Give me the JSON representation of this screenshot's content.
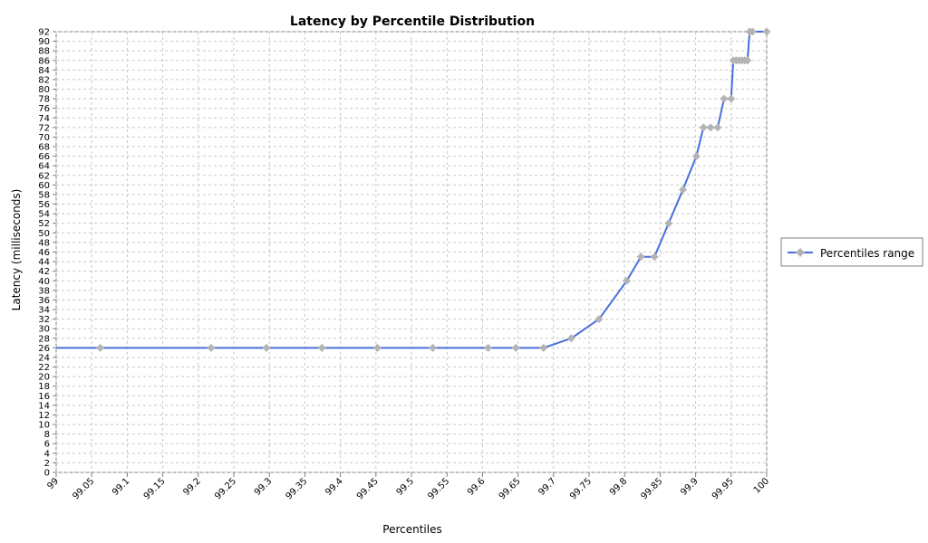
{
  "chart_data": {
    "type": "line",
    "title": "Latency by Percentile Distribution",
    "xlabel": "Percentiles",
    "ylabel": "Latency (milliseconds)",
    "xlim": [
      99,
      100
    ],
    "ylim": [
      0,
      92
    ],
    "x_ticks": [
      "99",
      "99.05",
      "99.1",
      "99.15",
      "99.2",
      "99.25",
      "99.3",
      "99.35",
      "99.4",
      "99.45",
      "99.5",
      "99.55",
      "99.6",
      "99.65",
      "99.7",
      "99.75",
      "99.8",
      "99.85",
      "99.9",
      "99.95",
      "100"
    ],
    "y_ticks": [
      "0",
      "2",
      "4",
      "6",
      "8",
      "10",
      "12",
      "14",
      "16",
      "18",
      "20",
      "22",
      "24",
      "26",
      "28",
      "30",
      "32",
      "34",
      "36",
      "38",
      "40",
      "42",
      "44",
      "46",
      "48",
      "50",
      "52",
      "54",
      "56",
      "58",
      "60",
      "62",
      "64",
      "66",
      "68",
      "70",
      "72",
      "74",
      "76",
      "78",
      "80",
      "82",
      "84",
      "86",
      "88",
      "90",
      "92"
    ],
    "grid": true,
    "legend_position": "right",
    "colors": {
      "line": "#4a6fdc",
      "marker": "#b4b4b4"
    },
    "series": [
      {
        "name": "Percentiles range",
        "x": [
          99.0,
          99.062,
          99.218,
          99.296,
          99.374,
          99.452,
          99.53,
          99.608,
          99.647,
          99.686,
          99.725,
          99.764,
          99.803,
          99.823,
          99.842,
          99.862,
          99.882,
          99.901,
          99.911,
          99.921,
          99.931,
          99.94,
          99.95,
          99.953,
          99.957,
          99.961,
          99.965,
          99.969,
          99.973,
          99.976,
          99.98,
          100.0
        ],
        "values": [
          26,
          26,
          26,
          26,
          26,
          26,
          26,
          26,
          26,
          26,
          28,
          32,
          40,
          45,
          45,
          52,
          59,
          66,
          72,
          72,
          72,
          78,
          78,
          86,
          86,
          86,
          86,
          86,
          86,
          92,
          92,
          92
        ],
        "markers": [
          false,
          true,
          true,
          true,
          true,
          true,
          true,
          true,
          true,
          true,
          true,
          true,
          true,
          true,
          true,
          true,
          true,
          true,
          true,
          true,
          true,
          true,
          true,
          true,
          true,
          true,
          true,
          true,
          true,
          true,
          true,
          true
        ]
      }
    ]
  }
}
